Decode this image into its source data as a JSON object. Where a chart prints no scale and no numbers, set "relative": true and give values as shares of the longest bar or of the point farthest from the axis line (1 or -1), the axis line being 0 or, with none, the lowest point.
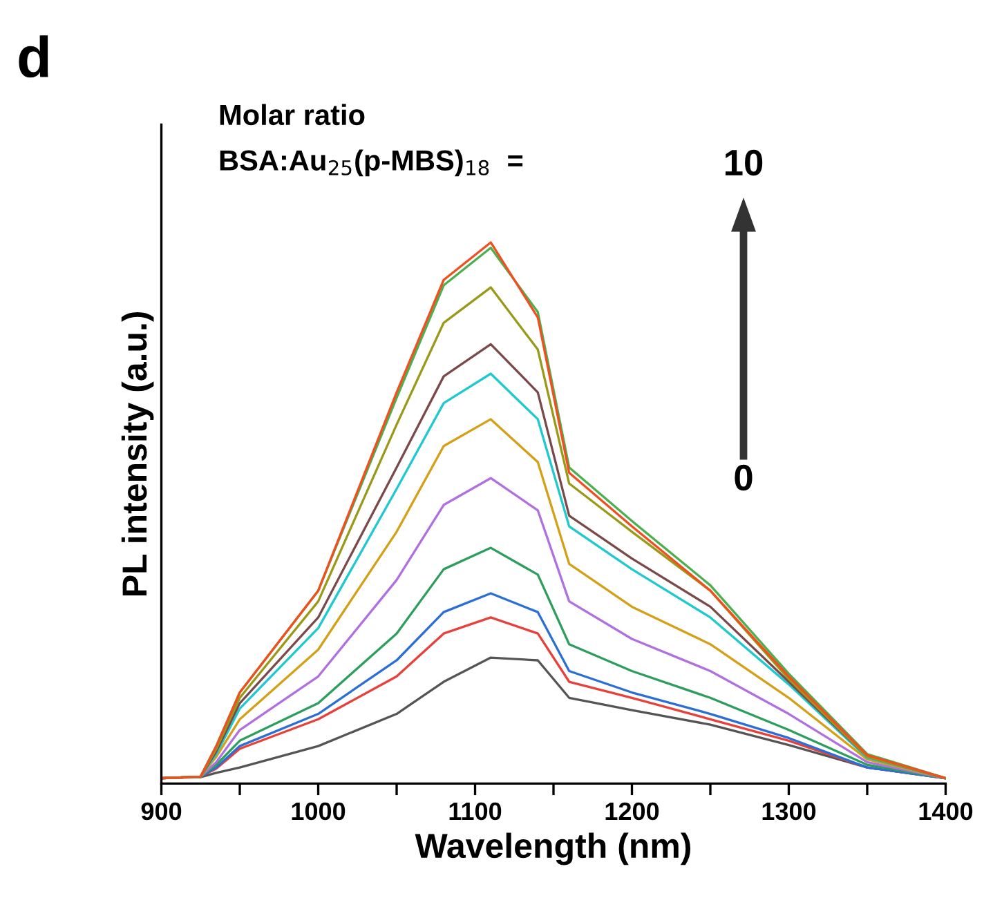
{
  "chart_data": {
    "type": "line",
    "relative": true,
    "xlabel": "Wavelength (nm)",
    "ylabel": "PL intensity (a.u.)",
    "annotations": [
      "d",
      "Molar ratio",
      "BSA:Au$_{25}$(p-MBS)$_{18}$  =",
      "10",
      "0"
    ],
    "x": [
      900,
      925,
      935,
      950,
      1000,
      1050,
      1080,
      1110,
      1140,
      1160,
      1200,
      1250,
      1300,
      1350,
      1400
    ],
    "xlim": [
      900,
      1400
    ],
    "xticks": [
      900,
      {
        "value": 950,
        "label": null
      },
      1000,
      {
        "value": 1050,
        "label": null
      },
      1100,
      {
        "value": 1150,
        "label": null
      },
      1200,
      {
        "value": 1250,
        "label": null
      },
      1300,
      {
        "value": 1350,
        "label": null
      },
      1400
    ],
    "grid": false,
    "legend": false,
    "marker": "none",
    "line_style": "solid",
    "series": [
      {
        "color": "#555555",
        "values": [
          0,
          0.002,
          0.01,
          0.02,
          0.06,
          0.12,
          0.18,
          0.225,
          0.22,
          0.15,
          0.127,
          0.1,
          0.062,
          0.02,
          0
        ]
      },
      {
        "color": "#e8403a",
        "values": [
          0,
          0.003,
          0.018,
          0.055,
          0.11,
          0.19,
          0.27,
          0.3,
          0.27,
          0.18,
          0.15,
          0.11,
          0.07,
          0.02,
          0
        ]
      },
      {
        "color": "#2b6fd6",
        "values": [
          0,
          0.003,
          0.02,
          0.06,
          0.12,
          0.22,
          0.31,
          0.345,
          0.31,
          0.2,
          0.16,
          0.12,
          0.075,
          0.02,
          0
        ]
      },
      {
        "color": "#2e9e5e",
        "values": [
          0,
          0.003,
          0.025,
          0.07,
          0.14,
          0.27,
          0.39,
          0.43,
          0.38,
          0.25,
          0.2,
          0.15,
          0.09,
          0.025,
          0
        ]
      },
      {
        "color": "#b070e0",
        "values": [
          0,
          0.003,
          0.03,
          0.09,
          0.19,
          0.37,
          0.51,
          0.56,
          0.5,
          0.33,
          0.26,
          0.2,
          0.12,
          0.03,
          0
        ]
      },
      {
        "color": "#d4a017",
        "values": [
          0,
          0.003,
          0.04,
          0.11,
          0.24,
          0.46,
          0.62,
          0.67,
          0.59,
          0.4,
          0.32,
          0.25,
          0.15,
          0.035,
          0
        ]
      },
      {
        "color": "#20c8d0",
        "values": [
          0,
          0.003,
          0.045,
          0.13,
          0.28,
          0.54,
          0.7,
          0.755,
          0.67,
          0.47,
          0.39,
          0.3,
          0.175,
          0.038,
          0
        ]
      },
      {
        "color": "#7a4a4a",
        "values": [
          0,
          0.003,
          0.05,
          0.14,
          0.3,
          0.58,
          0.75,
          0.81,
          0.72,
          0.49,
          0.41,
          0.32,
          0.18,
          0.04,
          0
        ]
      },
      {
        "color": "#9a9a1a",
        "values": [
          0,
          0.003,
          0.055,
          0.15,
          0.33,
          0.66,
          0.85,
          0.916,
          0.8,
          0.55,
          0.46,
          0.35,
          0.185,
          0.04,
          0
        ]
      },
      {
        "color": "#4caf50",
        "values": [
          0,
          0.003,
          0.06,
          0.16,
          0.35,
          0.71,
          0.92,
          0.99,
          0.87,
          0.58,
          0.48,
          0.36,
          0.195,
          0.045,
          0
        ]
      },
      {
        "color": "#f05020",
        "values": [
          0,
          0.003,
          0.06,
          0.16,
          0.35,
          0.72,
          0.93,
          1.0,
          0.86,
          0.57,
          0.47,
          0.35,
          0.19,
          0.043,
          0
        ]
      }
    ]
  }
}
